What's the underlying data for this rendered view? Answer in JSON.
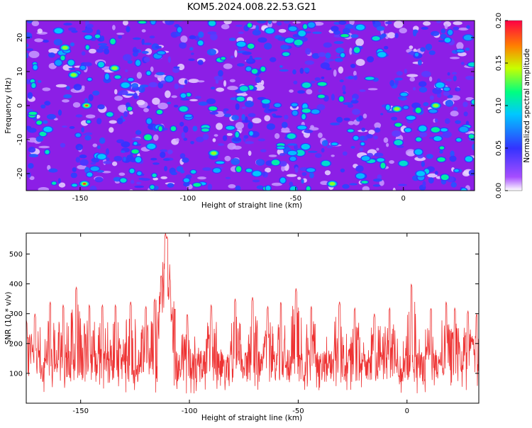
{
  "title": "KOM5.2024.008.22.53.G21",
  "chart_data": [
    {
      "type": "heatmap",
      "xlabel": "Height of straight line (km)",
      "ylabel": "Frequency (Hz)",
      "xlim": [
        -175,
        33
      ],
      "ylim": [
        -25,
        25
      ],
      "xticks": [
        -150,
        -100,
        -50,
        0
      ],
      "yticks": [
        -20,
        -10,
        0,
        10,
        20
      ],
      "colorbar": {
        "label": "Normalized spectral amplitude",
        "range": [
          0,
          0.2
        ],
        "ticks": [
          "0.00",
          "0.05",
          "0.10",
          "0.15",
          "0.20"
        ],
        "colors": [
          "#ffffff",
          "#8a2be2",
          "#2020ff",
          "#00c8ff",
          "#00ff80",
          "#c8ff00",
          "#ff8000",
          "#ff0000"
        ]
      },
      "hotspots": [
        {
          "x": -147,
          "y": 0,
          "v": 0.18
        },
        {
          "x": -148,
          "y": -23,
          "v": 0.19
        },
        {
          "x": -33,
          "y": -23,
          "v": 0.14
        },
        {
          "x": -157,
          "y": 17,
          "v": 0.13
        },
        {
          "x": -153,
          "y": 9,
          "v": 0.12
        },
        {
          "x": -134,
          "y": 11,
          "v": 0.11
        },
        {
          "x": -102,
          "y": -1,
          "v": 0.1
        },
        {
          "x": -88,
          "y": -14,
          "v": 0.11
        },
        {
          "x": -36,
          "y": -17,
          "v": 0.1
        },
        {
          "x": -3,
          "y": -1,
          "v": 0.11
        },
        {
          "x": 15,
          "y": 0,
          "v": 0.12
        },
        {
          "x": 0,
          "y": -17,
          "v": 0.1
        },
        {
          "x": -45,
          "y": 6,
          "v": 0.1
        },
        {
          "x": -129,
          "y": 6,
          "v": 0.09
        },
        {
          "x": -74,
          "y": 5,
          "v": 0.1
        },
        {
          "x": -52,
          "y": -9,
          "v": 0.1
        },
        {
          "x": 8,
          "y": -20,
          "v": 0.09
        },
        {
          "x": 17,
          "y": 6,
          "v": 0.09
        },
        {
          "x": -117,
          "y": -12,
          "v": 0.09
        },
        {
          "x": -68,
          "y": -20,
          "v": 0.09
        },
        {
          "x": -165,
          "y": -7,
          "v": 0.09
        },
        {
          "x": -160,
          "y": 22,
          "v": 0.09
        },
        {
          "x": -62,
          "y": 22,
          "v": 0.09
        },
        {
          "x": -20,
          "y": 23,
          "v": 0.09
        },
        {
          "x": 30,
          "y": 20,
          "v": 0.08
        },
        {
          "x": -140,
          "y": -15,
          "v": 0.09
        },
        {
          "x": -10,
          "y": 15,
          "v": 0.09
        },
        {
          "x": 28,
          "y": -7,
          "v": 0.08
        }
      ]
    },
    {
      "type": "line",
      "xlabel": "Height of straight line (km)",
      "ylabel": "SNR (10 * v/v)",
      "xlim": [
        -175,
        33
      ],
      "ylim": [
        0,
        570
      ],
      "xticks": [
        -150,
        -100,
        -50,
        0
      ],
      "yticks": [
        100,
        200,
        300,
        400,
        500
      ],
      "color": "#ee3333",
      "baseline": {
        "mean": 125,
        "spread": 55
      },
      "peaks": [
        {
          "x": -175,
          "y": 280
        },
        {
          "x": -171,
          "y": 300
        },
        {
          "x": -164,
          "y": 340
        },
        {
          "x": -158,
          "y": 330
        },
        {
          "x": -152,
          "y": 390
        },
        {
          "x": -146,
          "y": 330
        },
        {
          "x": -140,
          "y": 330
        },
        {
          "x": -134,
          "y": 330
        },
        {
          "x": -127,
          "y": 340
        },
        {
          "x": -120,
          "y": 325
        },
        {
          "x": -116,
          "y": 350
        },
        {
          "x": -113,
          "y": 430
        },
        {
          "x": -111,
          "y": 570
        },
        {
          "x": -110.3,
          "y": 560
        },
        {
          "x": -109,
          "y": 420
        },
        {
          "x": -101,
          "y": 300
        },
        {
          "x": -90,
          "y": 330
        },
        {
          "x": -79,
          "y": 350
        },
        {
          "x": -71,
          "y": 355
        },
        {
          "x": -64,
          "y": 325
        },
        {
          "x": -58,
          "y": 340
        },
        {
          "x": -51,
          "y": 385
        },
        {
          "x": -44,
          "y": 325
        },
        {
          "x": -31,
          "y": 340
        },
        {
          "x": -24,
          "y": 320
        },
        {
          "x": -15,
          "y": 300
        },
        {
          "x": -8,
          "y": 320
        },
        {
          "x": 2,
          "y": 400
        },
        {
          "x": 11,
          "y": 320
        },
        {
          "x": 18,
          "y": 340
        },
        {
          "x": 22,
          "y": 320
        },
        {
          "x": 28,
          "y": 310
        },
        {
          "x": 32,
          "y": 300
        }
      ]
    }
  ]
}
